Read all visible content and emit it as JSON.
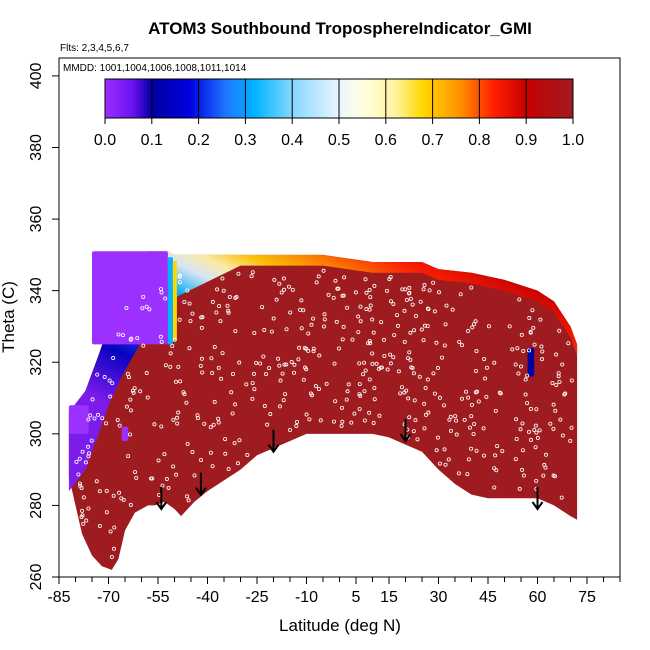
{
  "chart_data": {
    "type": "heatmap",
    "title": "ATOM3 Southbound TroposphereIndicator_GMI",
    "flights_label": "Flts: 2,3,4,5,6,7",
    "mmdd_label": "MMDD: 1001,1004,1006,1008,1011,1014",
    "xlabel": "Latitude (deg N)",
    "ylabel": "Theta (C)",
    "xlim": [
      -85,
      85
    ],
    "ylim": [
      260,
      405
    ],
    "x_tick_labels": [
      "-85",
      "-70",
      "-55",
      "-40",
      "-25",
      "-10",
      "5",
      "15",
      "30",
      "45",
      "60",
      "75"
    ],
    "x_tick_values": [
      -85,
      -70,
      -55,
      -40,
      -25,
      -10,
      5,
      15,
      30,
      45,
      60,
      75
    ],
    "x_minor_ticks": [
      -80,
      -75,
      -65,
      -60,
      -50,
      -45,
      -35,
      -30,
      -20,
      -15,
      -5,
      0,
      10,
      20,
      25,
      35,
      40,
      50,
      55,
      65,
      70,
      80,
      85
    ],
    "y_tick_labels": [
      "260",
      "280",
      "300",
      "320",
      "340",
      "360",
      "380",
      "400"
    ],
    "y_tick_values": [
      260,
      280,
      300,
      320,
      340,
      360,
      380,
      400
    ],
    "colorbar": {
      "min": 0.0,
      "max": 1.0,
      "tick_labels": [
        "0.0",
        "0.1",
        "0.2",
        "0.3",
        "0.4",
        "0.5",
        "0.6",
        "0.7",
        "0.8",
        "0.9",
        "1.0"
      ],
      "tick_values": [
        0,
        0.1,
        0.2,
        0.3,
        0.4,
        0.5,
        0.6,
        0.7,
        0.8,
        0.9,
        1.0
      ],
      "stops": [
        {
          "v": 0.0,
          "c": "#9b30ff"
        },
        {
          "v": 0.06,
          "c": "#6a10f0"
        },
        {
          "v": 0.1,
          "c": "#0000a0"
        },
        {
          "v": 0.18,
          "c": "#0000dd"
        },
        {
          "v": 0.26,
          "c": "#1e78ff"
        },
        {
          "v": 0.32,
          "c": "#00b4ff"
        },
        {
          "v": 0.4,
          "c": "#86d6ff"
        },
        {
          "v": 0.5,
          "c": "#eaf6ff"
        },
        {
          "v": 0.55,
          "c": "#ffffe0"
        },
        {
          "v": 0.62,
          "c": "#fff2a0"
        },
        {
          "v": 0.68,
          "c": "#ffd700"
        },
        {
          "v": 0.76,
          "c": "#ff9000"
        },
        {
          "v": 0.83,
          "c": "#ff2000"
        },
        {
          "v": 0.9,
          "c": "#c80000"
        },
        {
          "v": 1.0,
          "c": "#9e1c20"
        }
      ]
    },
    "tropopause_arrows": [
      {
        "lat": -54,
        "theta": 279
      },
      {
        "lat": -42,
        "theta": 283
      },
      {
        "lat": -20,
        "theta": 295
      },
      {
        "lat": 20,
        "theta": 298
      },
      {
        "lat": 60,
        "theta": 279
      }
    ],
    "curtain_lower_boundary": [
      [
        -82,
        288
      ],
      [
        -80,
        280
      ],
      [
        -78,
        272
      ],
      [
        -75,
        266
      ],
      [
        -72,
        263
      ],
      [
        -69,
        262
      ],
      [
        -67,
        265
      ],
      [
        -65,
        273
      ],
      [
        -62,
        278
      ],
      [
        -58,
        280
      ],
      [
        -56,
        280
      ],
      [
        -53,
        281
      ],
      [
        -50,
        279
      ],
      [
        -48,
        277
      ],
      [
        -44,
        281
      ],
      [
        -40,
        284
      ],
      [
        -35,
        287
      ],
      [
        -30,
        290
      ],
      [
        -25,
        294
      ],
      [
        -20,
        296
      ],
      [
        -15,
        298
      ],
      [
        -10,
        300
      ],
      [
        0,
        300
      ],
      [
        10,
        300
      ],
      [
        15,
        299
      ],
      [
        20,
        297
      ],
      [
        25,
        295
      ],
      [
        30,
        290
      ],
      [
        35,
        286
      ],
      [
        40,
        283
      ],
      [
        45,
        282
      ],
      [
        50,
        282
      ],
      [
        55,
        282
      ],
      [
        60,
        282
      ],
      [
        65,
        280
      ],
      [
        70,
        277
      ],
      [
        72,
        276
      ]
    ],
    "curtain_top_approx": [
      [
        -82,
        306
      ],
      [
        -77,
        312
      ],
      [
        -73,
        322
      ],
      [
        -70,
        330
      ],
      [
        -66,
        338
      ],
      [
        -63,
        343
      ],
      [
        -61,
        346
      ],
      [
        -60,
        349
      ],
      [
        -58,
        351
      ],
      [
        -52,
        351
      ],
      [
        -50,
        350
      ],
      [
        -30,
        350
      ],
      [
        -20,
        350
      ],
      [
        -5,
        350
      ],
      [
        10,
        348
      ],
      [
        20,
        348
      ],
      [
        25,
        348
      ],
      [
        30,
        346
      ],
      [
        40,
        345
      ],
      [
        50,
        343
      ],
      [
        60,
        340
      ],
      [
        65,
        337
      ],
      [
        70,
        330
      ],
      [
        72,
        325
      ]
    ],
    "stratospheric_regions": [
      {
        "lat_range": [
          -75,
          -52
        ],
        "theta_range": [
          325,
          351
        ],
        "indicator": 0.0
      },
      {
        "lat_range": [
          -82,
          -76
        ],
        "theta_range": [
          300,
          308
        ],
        "indicator": 0.0
      },
      {
        "lat_range": [
          -66,
          -64
        ],
        "theta_range": [
          298,
          302
        ],
        "indicator": 0.05
      },
      {
        "lat_range": [
          57,
          59
        ],
        "theta_range": [
          316,
          324
        ],
        "indicator": 0.1
      }
    ],
    "background_indicator": 1.0
  }
}
